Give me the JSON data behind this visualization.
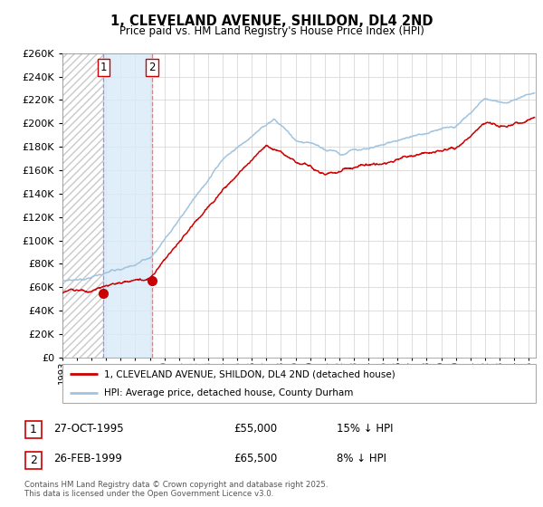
{
  "title": "1, CLEVELAND AVENUE, SHILDON, DL4 2ND",
  "subtitle": "Price paid vs. HM Land Registry's House Price Index (HPI)",
  "ylim": [
    0,
    260000
  ],
  "yticks": [
    0,
    20000,
    40000,
    60000,
    80000,
    100000,
    120000,
    140000,
    160000,
    180000,
    200000,
    220000,
    240000,
    260000
  ],
  "sale1_date_num": 1995.82,
  "sale1_price": 55000,
  "sale1_label": "1",
  "sale1_date_str": "27-OCT-1995",
  "sale1_hpi_pct": "15% ↓ HPI",
  "sale2_date_num": 1999.15,
  "sale2_price": 65500,
  "sale2_label": "2",
  "sale2_date_str": "26-FEB-1999",
  "sale2_hpi_pct": "8% ↓ HPI",
  "hpi_line_color": "#a0c4e0",
  "price_line_color": "#cc0000",
  "sale_marker_color": "#cc0000",
  "shade_color": "#d8eaf8",
  "vline1_color": "#9999bb",
  "vline2_color": "#cc8888",
  "legend_label_red": "1, CLEVELAND AVENUE, SHILDON, DL4 2ND (detached house)",
  "legend_label_blue": "HPI: Average price, detached house, County Durham",
  "footer": "Contains HM Land Registry data © Crown copyright and database right 2025.\nThis data is licensed under the Open Government Licence v3.0.",
  "xmin": 1993.0,
  "xmax": 2025.5
}
